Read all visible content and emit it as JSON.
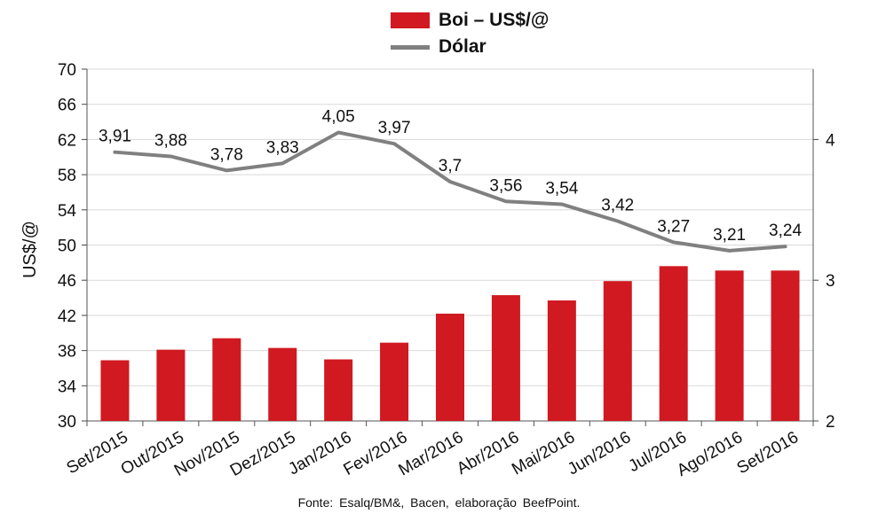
{
  "chart_data": {
    "type": "bar",
    "categories": [
      "Set/2015",
      "Out/2015",
      "Nov/2015",
      "Dez/2015",
      "Jan/2016",
      "Fev/2016",
      "Mar/2016",
      "Abr/2016",
      "Mai/2016",
      "Jun/2016",
      "Jul/2016",
      "Ago/2016",
      "Set/2016"
    ],
    "series": [
      {
        "name": "Boi – US$/@",
        "type": "bar",
        "axis": "left",
        "color": "#d01920",
        "values": [
          36.9,
          38.1,
          39.4,
          38.3,
          37.0,
          38.9,
          42.2,
          44.3,
          43.7,
          45.9,
          47.6,
          47.1,
          47.1
        ]
      },
      {
        "name": "Dólar",
        "type": "line",
        "axis": "right",
        "color": "#808080",
        "values": [
          3.91,
          3.88,
          3.78,
          3.83,
          4.05,
          3.97,
          3.7,
          3.56,
          3.54,
          3.42,
          3.27,
          3.21,
          3.24
        ],
        "labels": [
          "3,91",
          "3,88",
          "3,78",
          "3,83",
          "4,05",
          "3,97",
          "3,7",
          "3,56",
          "3,54",
          "3,42",
          "3,27",
          "3,21",
          "3,24"
        ]
      }
    ],
    "ylabel": "US$/@",
    "ylim": [
      30,
      70
    ],
    "yticks": [
      30,
      34,
      38,
      42,
      46,
      50,
      54,
      58,
      62,
      66,
      70
    ],
    "y2lim": [
      2,
      4.5
    ],
    "y2ticks": [
      2,
      3,
      4
    ],
    "grid": true,
    "legend_position": "top"
  },
  "source": "Fonte:  Esalq/BM&,  Bacen,  elaboração  BeefPoint."
}
